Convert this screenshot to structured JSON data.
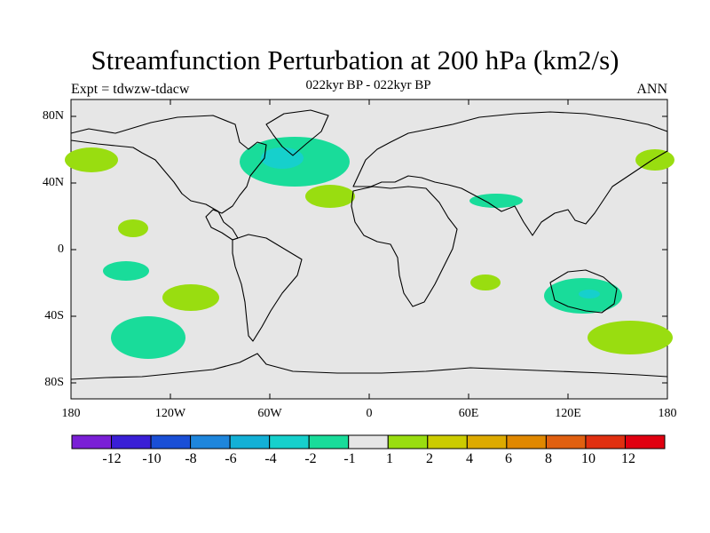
{
  "title": "Streamfunction Perturbation at 200 hPa (km2/s)",
  "subtitle_left": "Expt = tdwzw-tdacw",
  "subtitle_center": "022kyr BP - 022kyr BP",
  "subtitle_right": "ANN",
  "lat_ticks": [
    "80N",
    "40N",
    "0",
    "40S",
    "80S"
  ],
  "lon_ticks": [
    "180",
    "120W",
    "60W",
    "0",
    "60E",
    "120E",
    "180"
  ],
  "colorbar": {
    "labels": [
      "-12",
      "-10",
      "-8",
      "-6",
      "-4",
      "-2",
      "-1",
      "1",
      "2",
      "4",
      "6",
      "8",
      "10",
      "12"
    ],
    "colors": [
      "#7a1fd6",
      "#3a1fd6",
      "#1a4fd6",
      "#1e86dc",
      "#13b0d6",
      "#16d0cc",
      "#19dc9a",
      "#e6e6e6",
      "#99dd10",
      "#cccc00",
      "#ddaa00",
      "#e08800",
      "#e06010",
      "#e03010",
      "#e00010"
    ]
  },
  "colors": {
    "background": "#e6e6e6",
    "positive_1_2": "#99dd10",
    "negative_1_2": "#19dc9a",
    "negative_2_4": "#16d0cc"
  }
}
